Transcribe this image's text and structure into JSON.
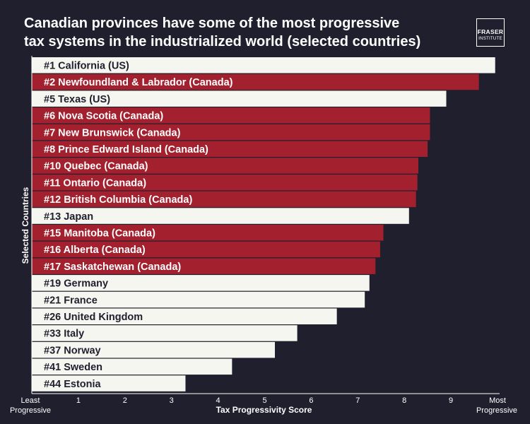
{
  "header": {
    "title_line1": "Canadian provinces have some of the most progressive",
    "title_line2": "tax systems in the industrialized world (selected countries)",
    "logo_line1": "FRASER",
    "logo_line2": "INSTITUTE"
  },
  "colors": {
    "background": "#1f1f2e",
    "canada_bar": "#a3212f",
    "other_bar": "#f6f6f1",
    "canada_text": "#ffffff",
    "other_text": "#1f1f2e",
    "axis": "#ffffff"
  },
  "chart_data": {
    "type": "bar",
    "orientation": "horizontal",
    "title": "Canadian provinces have some of the most progressive tax systems in the industrialized world (selected countries)",
    "xlabel": "Tax Progressivity Score",
    "ylabel": "Selected Countries",
    "xlim": [
      0,
      10
    ],
    "x_ticks": [
      "1",
      "2",
      "3",
      "4",
      "5",
      "6",
      "7",
      "8",
      "9"
    ],
    "x_min_label": [
      "Least",
      "Progressive"
    ],
    "x_max_label": [
      "Most",
      "Progressive"
    ],
    "categories": [
      "#1 California (US)",
      "#2 Newfoundland & Labrador (Canada)",
      "#5 Texas (US)",
      "#6 Nova Scotia (Canada)",
      "#7 New Brunswick (Canada)",
      "#8 Prince Edward Island (Canada)",
      "#10 Quebec (Canada)",
      "#11 Ontario (Canada)",
      "#12 British Columbia (Canada)",
      "#13 Japan",
      "#15 Manitoba (Canada)",
      "#16 Alberta (Canada)",
      "#17 Saskatchewan (Canada)",
      "#19 Germany",
      "#21 France",
      "#26 United Kingdom",
      "#33 Italy",
      "#37 Norway",
      "#41 Sweden",
      "#44 Estonia"
    ],
    "values": [
      9.95,
      9.6,
      8.9,
      8.55,
      8.55,
      8.5,
      8.3,
      8.28,
      8.25,
      8.1,
      7.55,
      7.48,
      7.38,
      7.25,
      7.15,
      6.55,
      5.7,
      5.22,
      4.3,
      3.3
    ],
    "canada": [
      false,
      true,
      false,
      true,
      true,
      true,
      true,
      true,
      true,
      false,
      true,
      true,
      true,
      false,
      false,
      false,
      false,
      false,
      false,
      false
    ]
  }
}
